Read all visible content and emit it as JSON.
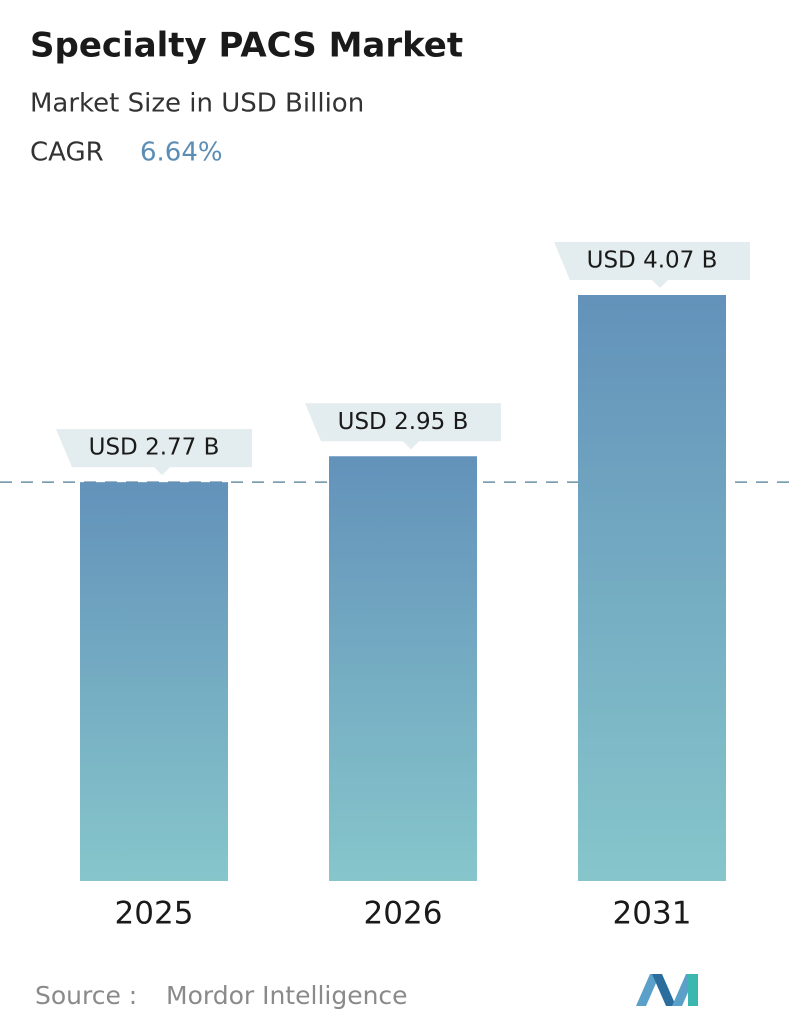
{
  "chart_data": {
    "type": "bar",
    "title": "Specialty PACS Market",
    "subtitle": "Market Size in USD Billion",
    "cagr_label": "CAGR",
    "cagr": "6.64%",
    "categories": [
      "2025",
      "2026",
      "2031"
    ],
    "values": [
      2.77,
      2.95,
      4.07
    ],
    "value_labels": [
      "USD 2.77 B",
      "USD 2.95 B",
      "USD 4.07 B"
    ],
    "color_top": "#6392ba",
    "color_bottom": "#86c6cb",
    "source_label": "Source :",
    "source": "Mordor Intelligence"
  }
}
